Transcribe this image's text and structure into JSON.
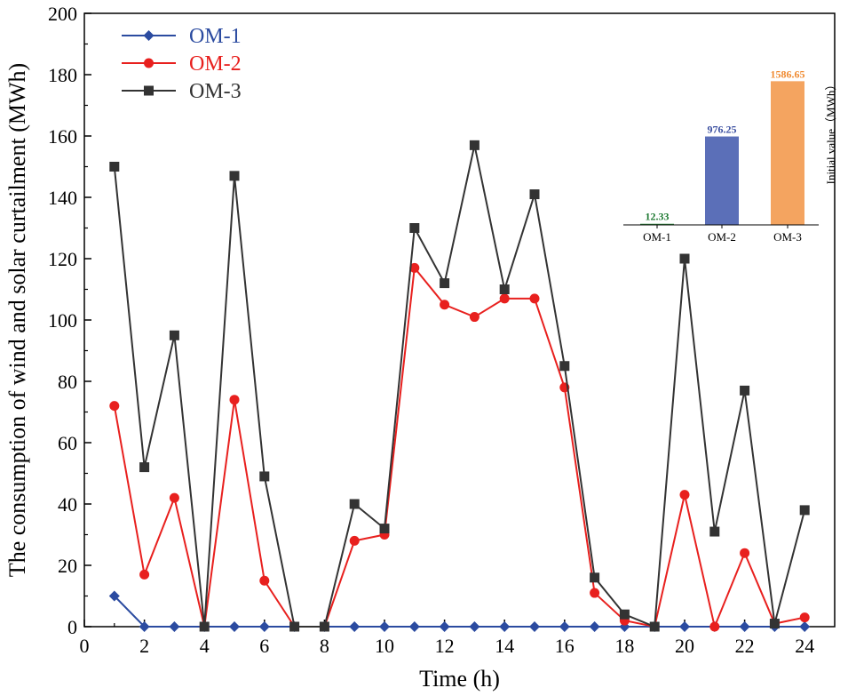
{
  "chart_data": [
    {
      "type": "line",
      "title": "",
      "xlabel": "Time (h)",
      "ylabel": "The consumption of wind and solar curtailment (MWh)",
      "xlim": [
        0,
        25
      ],
      "ylim": [
        0,
        200
      ],
      "xticks": [
        0,
        2,
        4,
        6,
        8,
        10,
        12,
        14,
        16,
        18,
        20,
        22,
        24
      ],
      "yticks": [
        0,
        20,
        40,
        60,
        80,
        100,
        120,
        140,
        160,
        180,
        200
      ],
      "legend_position": "top-left",
      "x": [
        1,
        2,
        3,
        4,
        5,
        6,
        7,
        8,
        9,
        10,
        11,
        12,
        13,
        14,
        15,
        16,
        17,
        18,
        19,
        20,
        21,
        22,
        23,
        24
      ],
      "series": [
        {
          "name": "OM-1",
          "color": "#2b4ba0",
          "marker": "diamond",
          "values": [
            10,
            0,
            0,
            0,
            0,
            0,
            0,
            0,
            0,
            0,
            0,
            0,
            0,
            0,
            0,
            0,
            0,
            0,
            0,
            0,
            0,
            0,
            0,
            0
          ]
        },
        {
          "name": "OM-2",
          "color": "#e8201e",
          "marker": "circle",
          "values": [
            72,
            17,
            42,
            0,
            74,
            15,
            0,
            0,
            28,
            30,
            117,
            105,
            101,
            107,
            107,
            78,
            11,
            2,
            0,
            43,
            0,
            24,
            1,
            3
          ]
        },
        {
          "name": "OM-3",
          "color": "#333333",
          "marker": "square",
          "values": [
            150,
            52,
            95,
            0,
            147,
            49,
            0,
            0,
            40,
            32,
            130,
            112,
            157,
            110,
            141,
            85,
            16,
            4,
            0,
            120,
            31,
            77,
            1,
            38
          ]
        }
      ]
    },
    {
      "type": "bar",
      "title": "",
      "ylabel": "Initial value（MWh）",
      "categories": [
        "OM-1",
        "OM-2",
        "OM-3"
      ],
      "values": [
        12.33,
        976.25,
        1586.65
      ],
      "value_labels": [
        "12.33",
        "976.25",
        "1586.65"
      ],
      "colors": [
        "#2e8b3e",
        "#5b6fb8",
        "#f4a460"
      ],
      "label_colors": [
        "#1f7a33",
        "#3b4fa0",
        "#f08a30"
      ],
      "ylim": [
        0,
        1600
      ]
    }
  ]
}
